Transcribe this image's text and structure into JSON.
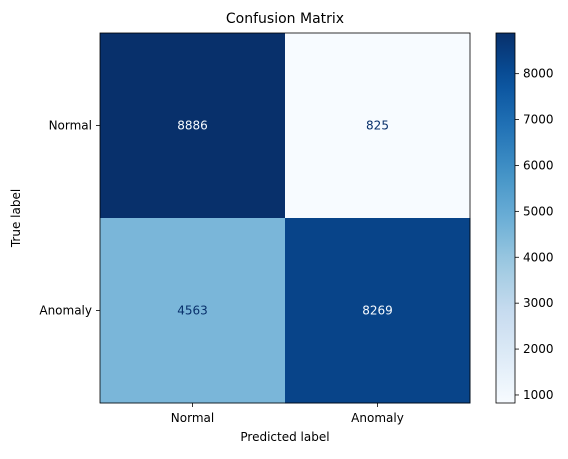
{
  "chart_data": {
    "type": "heatmap",
    "title": "Confusion Matrix",
    "xlabel": "Predicted label",
    "ylabel": "True label",
    "x_categories": [
      "Normal",
      "Anomaly"
    ],
    "y_categories": [
      "Normal",
      "Anomaly"
    ],
    "values": [
      [
        8886,
        825
      ],
      [
        4563,
        8269
      ]
    ],
    "colormap": "Blues",
    "colorbar": {
      "ticks": [
        1000,
        2000,
        3000,
        4000,
        5000,
        6000,
        7000,
        8000
      ],
      "range": [
        825,
        8886
      ]
    },
    "colors": {
      "low": "#f7fbff",
      "high": "#08306b",
      "text_dark": "#08306b",
      "text_light": "#f7fbff"
    }
  }
}
